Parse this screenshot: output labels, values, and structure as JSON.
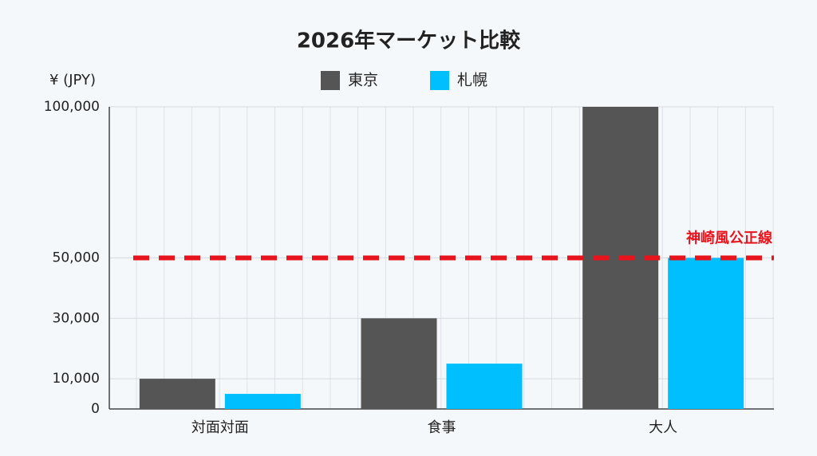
{
  "chart_data": {
    "type": "bar",
    "title": "2026年マーケット比較",
    "y_label": "¥ (JPY)",
    "categories": [
      "対面対面",
      "食事",
      "大人"
    ],
    "series": [
      {
        "name": "東京",
        "color": "#555555",
        "values": [
          10000,
          30000,
          100000
        ]
      },
      {
        "name": "札幌",
        "color": "#00bfff",
        "values": [
          5000,
          15000,
          50000
        ]
      }
    ],
    "ylim": [
      0,
      100000
    ],
    "yticks": [
      0,
      {
        "value": 10000,
        "label": "10,000"
      },
      {
        "value": 30000,
        "label": "30,000"
      },
      {
        "value": 50000,
        "label": "50,000"
      },
      {
        "value": 100000,
        "label": "100,000"
      }
    ],
    "grid": true,
    "reference_line": {
      "value": 50000,
      "label": "神崎風公正線",
      "color": "#e8141c"
    }
  }
}
